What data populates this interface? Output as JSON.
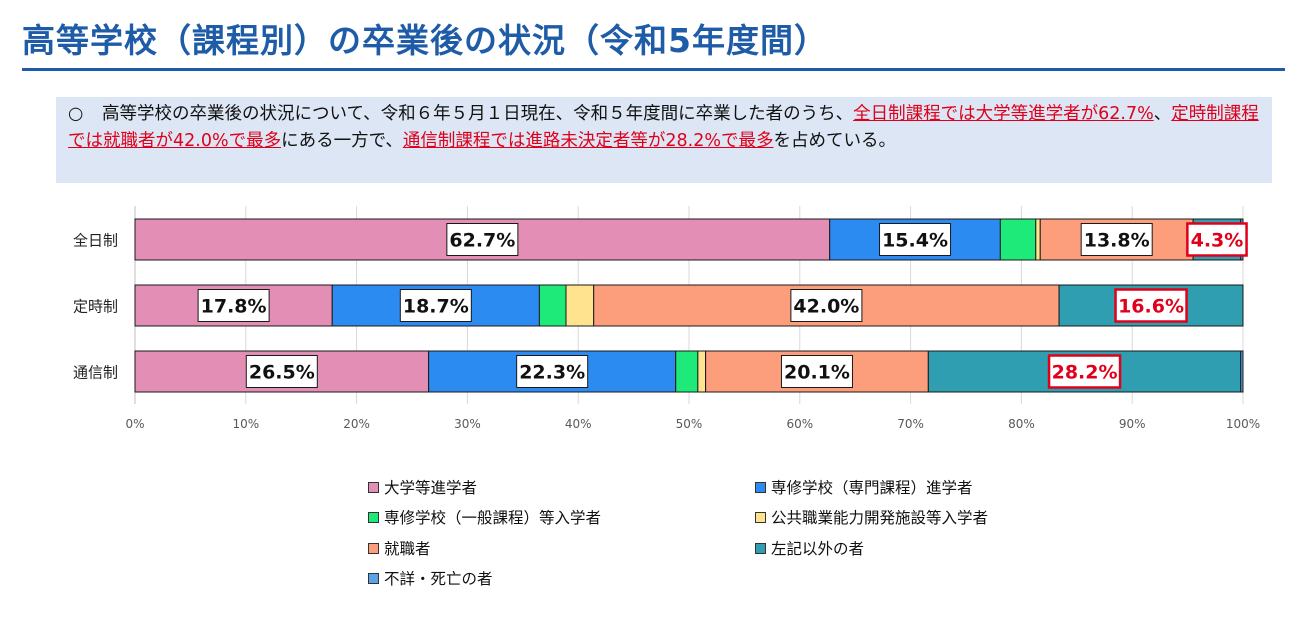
{
  "page": {
    "title": "高等学校（課程別）の卒業後の状況（令和5年度間）"
  },
  "summary": {
    "bullet": "○",
    "text_1": "高等学校の卒業後の状況について、令和６年５月１日現在、令和５年度間に卒業した者のうち、",
    "hl_1": "全日制課程では大学等進学者が62.7%",
    "text_2": "、",
    "hl_2": "定時制課程では就職者が42.0%で最多",
    "text_3": "にある一方で、",
    "hl_3": "通信制課程では進路未決定者等が28.2%で最多",
    "text_4": "を占めている。"
  },
  "colors": {
    "title": "#1F5CA8",
    "highlight": "#E0001B"
  },
  "chart_data": {
    "type": "bar",
    "orientation": "horizontal",
    "stacked": true,
    "title": "",
    "xlabel": "",
    "ylabel": "",
    "xlim": [
      0,
      100
    ],
    "x_ticks": [
      "0%",
      "10%",
      "20%",
      "30%",
      "40%",
      "50%",
      "60%",
      "70%",
      "80%",
      "90%",
      "100%"
    ],
    "categories": [
      "全日制",
      "定時制",
      "通信制"
    ],
    "series": [
      {
        "name": "大学等進学者",
        "color": "#E38EB5",
        "values": [
          62.7,
          17.8,
          26.5
        ]
      },
      {
        "name": "専修学校（専門課程）進学者",
        "color": "#2B8BF0",
        "values": [
          15.4,
          18.7,
          22.3
        ]
      },
      {
        "name": "専修学校（一般課程）等入学者",
        "color": "#1EEA7A",
        "values": [
          3.2,
          2.4,
          2.0
        ]
      },
      {
        "name": "公共職業能力開発施設等入学者",
        "color": "#FFE38F",
        "values": [
          0.4,
          2.5,
          0.7
        ]
      },
      {
        "name": "就職者",
        "color": "#FC9E7B",
        "values": [
          13.8,
          42.0,
          20.1
        ]
      },
      {
        "name": "左記以外の者",
        "color": "#2F9EB0",
        "values": [
          4.3,
          16.6,
          28.2
        ]
      },
      {
        "name": "不詳・死亡の者",
        "color": "#5BA3E8",
        "values": [
          0.2,
          0.0,
          0.2
        ]
      }
    ],
    "data_labels": [
      [
        {
          "series": 0,
          "text": "62.7%",
          "highlight": false
        },
        {
          "series": 1,
          "text": "15.4%",
          "highlight": false
        },
        {
          "series": 4,
          "text": "13.8%",
          "highlight": false
        },
        {
          "series": 5,
          "text": "4.3%",
          "highlight": true
        }
      ],
      [
        {
          "series": 0,
          "text": "17.8%",
          "highlight": false
        },
        {
          "series": 1,
          "text": "18.7%",
          "highlight": false
        },
        {
          "series": 4,
          "text": "42.0%",
          "highlight": false
        },
        {
          "series": 5,
          "text": "16.6%",
          "highlight": true
        }
      ],
      [
        {
          "series": 0,
          "text": "26.5%",
          "highlight": false
        },
        {
          "series": 1,
          "text": "22.3%",
          "highlight": false
        },
        {
          "series": 4,
          "text": "20.1%",
          "highlight": false
        },
        {
          "series": 5,
          "text": "28.2%",
          "highlight": true
        }
      ]
    ],
    "legend_position": "bottom",
    "grid": true
  }
}
